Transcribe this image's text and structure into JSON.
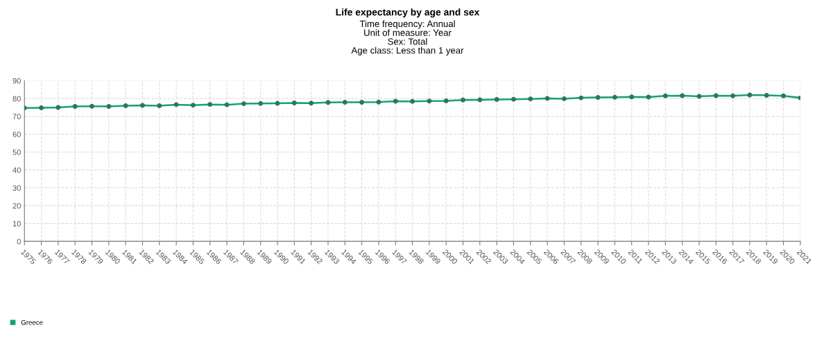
{
  "chart_data": {
    "type": "line",
    "title": "Life expectancy by age and sex",
    "subtitle": "Time frequency: Annual\nUnit of measure: Year\nSex: Total\nAge class: Less than 1 year",
    "categories": [
      "1975",
      "1976",
      "1977",
      "1978",
      "1979",
      "1980",
      "1981",
      "1982",
      "1983",
      "1984",
      "1985",
      "1986",
      "1987",
      "1988",
      "1989",
      "1990",
      "1991",
      "1992",
      "1993",
      "1994",
      "1995",
      "1996",
      "1997",
      "1998",
      "1999",
      "2000",
      "2001",
      "2002",
      "2003",
      "2004",
      "2005",
      "2006",
      "2007",
      "2008",
      "2009",
      "2010",
      "2011",
      "2012",
      "2013",
      "2014",
      "2015",
      "2016",
      "2017",
      "2018",
      "2019",
      "2020",
      "2021"
    ],
    "series": [
      {
        "name": "Greece",
        "color": "#1a9e77",
        "values": [
          74.7,
          74.8,
          75.0,
          75.6,
          75.7,
          75.6,
          76.0,
          76.2,
          76.0,
          76.6,
          76.3,
          76.7,
          76.5,
          77.1,
          77.2,
          77.3,
          77.5,
          77.4,
          77.8,
          77.9,
          77.9,
          78.0,
          78.5,
          78.4,
          78.6,
          78.7,
          79.2,
          79.3,
          79.5,
          79.6,
          79.8,
          80.1,
          79.9,
          80.4,
          80.6,
          80.7,
          80.9,
          80.8,
          81.5,
          81.6,
          81.2,
          81.6,
          81.5,
          82.0,
          81.8,
          81.5,
          80.4
        ]
      }
    ],
    "ylim": [
      0,
      90
    ],
    "yticks": [
      0,
      10,
      20,
      30,
      40,
      50,
      60,
      70,
      80,
      90
    ],
    "grid": true,
    "legend": "bottom left",
    "marker": "circle",
    "line_style": "solid"
  }
}
